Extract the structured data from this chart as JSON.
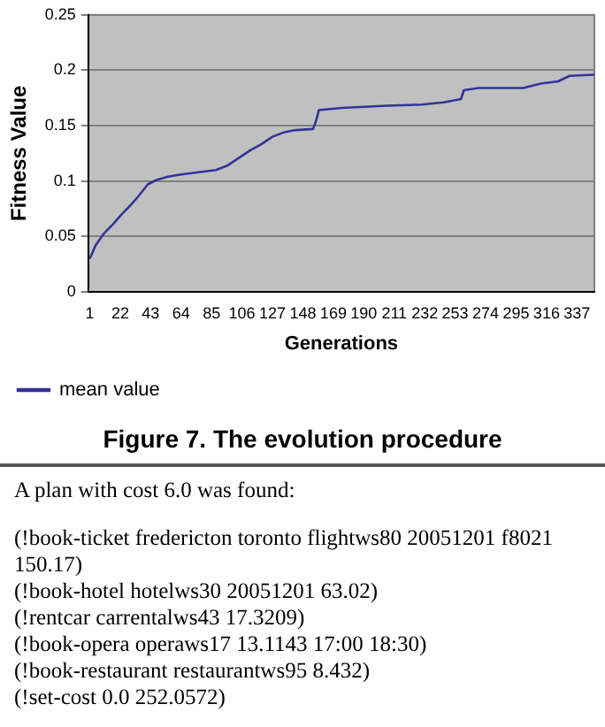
{
  "chart_data": {
    "type": "line",
    "xlabel": "Generations",
    "ylabel": "Fitness Value",
    "x": [
      1,
      5,
      11,
      17,
      23,
      29,
      35,
      41,
      47,
      55,
      64,
      76,
      88,
      96,
      104,
      112,
      119,
      127,
      135,
      143,
      155,
      157,
      159,
      175,
      206,
      230,
      245,
      257,
      259,
      269,
      300,
      312,
      324,
      332,
      349
    ],
    "series": [
      {
        "name": "mean value",
        "color": "#333399",
        "values": [
          0.03,
          0.042,
          0.053,
          0.061,
          0.07,
          0.078,
          0.087,
          0.097,
          0.101,
          0.104,
          0.106,
          0.108,
          0.11,
          0.114,
          0.121,
          0.128,
          0.133,
          0.14,
          0.144,
          0.146,
          0.147,
          0.154,
          0.164,
          0.166,
          0.168,
          0.169,
          0.171,
          0.174,
          0.182,
          0.184,
          0.184,
          0.188,
          0.19,
          0.195,
          0.196
        ]
      }
    ],
    "xlim": [
      0,
      349
    ],
    "xticks": [
      1,
      22,
      43,
      64,
      85,
      106,
      127,
      148,
      169,
      190,
      211,
      232,
      253,
      274,
      295,
      316,
      337
    ],
    "ylim": [
      0,
      0.25
    ],
    "yticks": [
      0,
      0.05,
      0.1,
      0.15,
      0.2,
      0.25
    ],
    "grid": "y",
    "legend": "bottom left",
    "marker": "none",
    "line_style": "solid",
    "annotations": [
      "Figure 7. The evolution procedure",
      "A plan with cost 6.0 was found:",
      "(!book-ticket fredericton toronto flightws80 20051201 f8021 150.17)",
      "(!book-hotel hotelws30 20051201 63.02)",
      "(!rentcar carrentalws43 17.3209)",
      "(!book-opera operaws17 13.1143 17:00 18:30)",
      "(!book-restaurant restaurantws95 8.432)",
      "(!set-cost 0.0 252.0572)"
    ]
  }
}
